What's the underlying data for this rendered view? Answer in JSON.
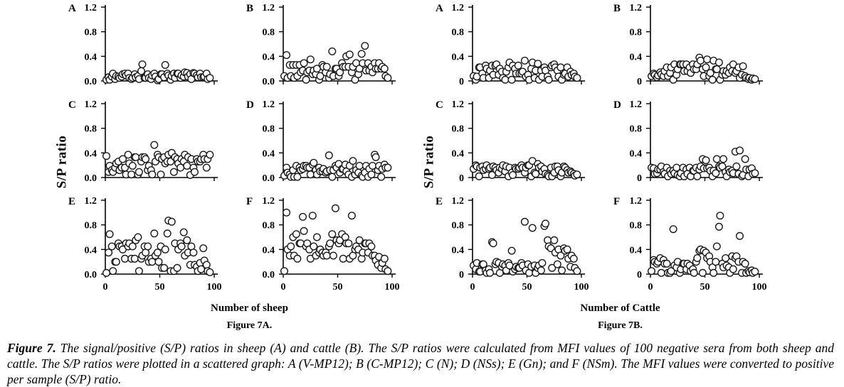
{
  "figure": {
    "caption_lead": "Figure 7.",
    "caption_text": " The signal/positive (S/P) ratios in sheep (A) and cattle (B). The S/P ratios were calculated from MFI values of 100 negative sera from both sheep and cattle. The S/P ratios were plotted in a scattered graph: A (V-MP12); B (C-MP12); C (N); D (NSs); E (Gn); and F (NSm). The MFI values were converted to positive per sample (S/P) ratio."
  },
  "colors": {
    "axis": "#000000",
    "marker_stroke": "#1a1a1a",
    "marker_fill": "#ffffff",
    "text": "#000000",
    "background": "#ffffff"
  },
  "chart_data": [
    {
      "id": "figure-7a",
      "type": "scatter",
      "subcaption": "Figure  7A.",
      "x_axis_label": "Number of sheep",
      "y_axis_label": "S/P ratio",
      "marker": "open-circle",
      "xlim": [
        0,
        100
      ],
      "ylim": [
        0,
        1.2
      ],
      "x_ticks": [
        "0",
        "50",
        "100"
      ],
      "x_tick_values": [
        0,
        50,
        100
      ],
      "y_ticks": [
        "1.2",
        "0.8",
        "0.4",
        "0.0"
      ],
      "y_tick_values": [
        1.2,
        0.8,
        0.4,
        0
      ],
      "x_grid": [
        1,
        3,
        4,
        6,
        7,
        9,
        10,
        12,
        13,
        15,
        16,
        18,
        19,
        21,
        22,
        24,
        25,
        27,
        28,
        30,
        31,
        33,
        34,
        36,
        37,
        39,
        40,
        42,
        43,
        45,
        46,
        48,
        49,
        51,
        52,
        54,
        55,
        57,
        58,
        60,
        61,
        63,
        64,
        66,
        67,
        69,
        70,
        72,
        73,
        75,
        76,
        78,
        79,
        81,
        82,
        84,
        85,
        87,
        88,
        90,
        91,
        93,
        94,
        96
      ],
      "panels": [
        {
          "letter": "A",
          "series": "V-MP12",
          "y": [
            0.02,
            0.06,
            0.02,
            0.07,
            0.12,
            0.03,
            0.08,
            0.07,
            0.05,
            0.07,
            0.11,
            0.12,
            0.09,
            0.12,
            0.05,
            0.03,
            0.05,
            0.11,
            0.06,
            0.08,
            0.03,
            0.16,
            0.27,
            0.05,
            0.05,
            0.11,
            0.05,
            0.03,
            0.09,
            0.12,
            0.07,
            0.01,
            0.03,
            0.11,
            0.11,
            0.06,
            0.26,
            0.12,
            0.09,
            0.02,
            0.08,
            0.12,
            0.05,
            0.12,
            0.12,
            0.05,
            0.09,
            0.07,
            0.14,
            0.13,
            0.07,
            0.11,
            0.03,
            0.13,
            0.12,
            0.09,
            0.06,
            0.12,
            0.06,
            0.06,
            0.07,
            0.12,
            0.03,
            0.05
          ]
        },
        {
          "letter": "B",
          "series": "C-MP12",
          "y": [
            0.08,
            0.42,
            0.05,
            0.26,
            0.08,
            0.26,
            0.05,
            0.26,
            0.08,
            0.26,
            0.14,
            0.17,
            0.29,
            0.02,
            0.14,
            0.17,
            0.35,
            0.11,
            0.17,
            0.11,
            0.2,
            0.02,
            0.08,
            0.26,
            0.23,
            0.14,
            0.23,
            0.05,
            0.11,
            0.48,
            0.08,
            0.2,
            0.2,
            0.08,
            0.14,
            0.29,
            0.23,
            0.23,
            0.4,
            0.23,
            0.43,
            0.14,
            0.23,
            0.02,
            0.29,
            0.11,
            0.2,
            0.44,
            0.29,
            0.57,
            0.17,
            0.29,
            0.17,
            0.23,
            0.14,
            0.29,
            0.2,
            0.2,
            0.29,
            0.2,
            0.23,
            0.2,
            0.08,
            0.05
          ]
        },
        {
          "letter": "C",
          "series": "N",
          "y": [
            0.35,
            0.09,
            0.19,
            0.12,
            0.09,
            0.16,
            0.23,
            0.26,
            0.12,
            0.16,
            0.3,
            0.16,
            0.05,
            0.37,
            0.23,
            0.05,
            0.19,
            0.33,
            0.33,
            0.05,
            0.09,
            0.26,
            0.33,
            0.33,
            0.3,
            0.12,
            0.19,
            0.12,
            0.05,
            0.53,
            0.26,
            0.37,
            0.33,
            0.05,
            0.3,
            0.33,
            0.23,
            0.26,
            0.37,
            0.26,
            0.4,
            0.09,
            0.33,
            0.3,
            0.23,
            0.16,
            0.3,
            0.26,
            0.37,
            0.19,
            0.33,
            0.04,
            0.3,
            0.16,
            0.09,
            0.3,
            0.26,
            0.26,
            0.3,
            0.37,
            0.3,
            0.16,
            0.3,
            0.37
          ]
        },
        {
          "letter": "D",
          "series": "NSs",
          "y": [
            0.03,
            0.16,
            0.08,
            0.05,
            0.01,
            0.12,
            0.01,
            0.19,
            0.01,
            0.16,
            0.12,
            0.14,
            0.19,
            0.19,
            0.16,
            0.16,
            0.05,
            0.21,
            0.24,
            0.12,
            0.05,
            0.16,
            0.1,
            0.1,
            0.14,
            0.08,
            0.1,
            0.36,
            0.12,
            0.01,
            0.12,
            0.19,
            0.16,
            0.22,
            0.08,
            0.14,
            0.14,
            0.21,
            0.1,
            0.05,
            0.19,
            0.01,
            0.27,
            0.05,
            0.12,
            0.08,
            0.19,
            0.03,
            0.01,
            0.08,
            0.19,
            0.01,
            0.14,
            0.05,
            0.19,
            0.37,
            0.33,
            0.12,
            0.19,
            0.01,
            0.14,
            0.21,
            0.16,
            0.16
          ]
        },
        {
          "letter": "E",
          "series": "Gn",
          "y": [
            0.02,
            0.35,
            0.65,
            0.45,
            0.05,
            0.2,
            0.2,
            0.5,
            0.45,
            0.45,
            0.4,
            0.25,
            0.5,
            0.45,
            0.5,
            0.25,
            0.45,
            0.25,
            0.55,
            0.6,
            0.05,
            0.25,
            0.3,
            0.45,
            0.35,
            0.45,
            0.2,
            0.25,
            0.2,
            0.66,
            0.3,
            0.35,
            0.2,
            0.45,
            0.1,
            0.1,
            0.4,
            0.66,
            0.87,
            0.05,
            0.85,
            0.05,
            0.5,
            0.1,
            0.4,
            0.5,
            0.45,
            0.68,
            0.3,
            0.55,
            0.35,
            0.15,
            0.45,
            0.35,
            0.15,
            0.12,
            0.05,
            0.18,
            0.08,
            0.42,
            0.22,
            0.15,
            0.05,
            0.03
          ]
        },
        {
          "letter": "F",
          "series": "NSm",
          "y": [
            0.05,
            1.0,
            0.4,
            0.3,
            0.45,
            0.6,
            0.3,
            0.65,
            0.25,
            0.5,
            0.5,
            0.93,
            0.7,
            0.45,
            0.5,
            0.4,
            0.25,
            0.95,
            0.45,
            0.3,
            0.6,
            0.35,
            0.4,
            0.35,
            0.3,
            0.35,
            0.3,
            0.45,
            0.5,
            0.65,
            0.3,
            1.07,
            0.55,
            0.5,
            0.55,
            0.65,
            0.25,
            0.6,
            0.5,
            0.5,
            0.25,
            0.95,
            0.3,
            0.4,
            0.45,
            0.4,
            0.55,
            0.25,
            0.35,
            0.5,
            0.5,
            0.35,
            0.5,
            0.45,
            0.3,
            0.3,
            0.22,
            0.15,
            0.28,
            0.1,
            0.18,
            0.25,
            0.08,
            0.05
          ]
        }
      ]
    },
    {
      "id": "figure-7b",
      "type": "scatter",
      "subcaption": "Figure  7B.",
      "x_axis_label": "Number of Cattle",
      "y_axis_label": "S/P ratio",
      "marker": "open-circle",
      "xlim": [
        0,
        100
      ],
      "ylim": [
        0,
        1.2
      ],
      "x_ticks": [
        "0",
        "50",
        "100"
      ],
      "x_tick_values": [
        0,
        50,
        100
      ],
      "y_ticks": [
        "1.2",
        "0.8",
        "0.4",
        "0"
      ],
      "y_tick_values": [
        1.2,
        0.8,
        0.4,
        0
      ],
      "x_grid": [
        1,
        3,
        4,
        6,
        7,
        9,
        10,
        12,
        13,
        15,
        16,
        18,
        19,
        21,
        22,
        24,
        25,
        27,
        28,
        30,
        31,
        33,
        34,
        36,
        37,
        39,
        40,
        42,
        43,
        45,
        46,
        48,
        49,
        51,
        52,
        54,
        55,
        57,
        58,
        60,
        61,
        63,
        64,
        66,
        67,
        69,
        70,
        72,
        73,
        75,
        76,
        78,
        79,
        81,
        82,
        84,
        85,
        87,
        88,
        90,
        91,
        93,
        94,
        96
      ],
      "panels": [
        {
          "letter": "A",
          "series": "V-MP12",
          "y": [
            0.08,
            0.02,
            0.07,
            0.22,
            0.22,
            0.12,
            0.05,
            0.25,
            0.2,
            0.05,
            0.17,
            0.25,
            0.1,
            0.25,
            0.27,
            0.1,
            0.2,
            0.15,
            0.05,
            0.02,
            0.15,
            0.22,
            0.3,
            0.02,
            0.25,
            0.2,
            0.12,
            0.25,
            0.12,
            0.12,
            0.15,
            0.33,
            0.07,
            0.1,
            0.02,
            0.2,
            0.3,
            0.05,
            0.17,
            0.28,
            0.02,
            0.17,
            0.07,
            0.22,
            0.17,
            0.07,
            0.02,
            0.22,
            0.25,
            0.27,
            0.22,
            0.17,
            0.07,
            0.22,
            0.02,
            0.1,
            0.12,
            0.22,
            0.07,
            0.15,
            0.1,
            0.12,
            0.07,
            0.05
          ]
        },
        {
          "letter": "B",
          "series": "C-MP12",
          "y": [
            0.08,
            0.12,
            0.1,
            0.06,
            0.09,
            0.14,
            0.11,
            0.08,
            0.16,
            0.22,
            0.08,
            0.13,
            0.22,
            0.02,
            0.27,
            0.1,
            0.19,
            0.27,
            0.27,
            0.27,
            0.16,
            0.27,
            0.16,
            0.22,
            0.13,
            0.27,
            0.19,
            0.19,
            0.27,
            0.38,
            0.33,
            0.19,
            0.08,
            0.22,
            0.35,
            0.08,
            0.13,
            0.02,
            0.33,
            0.19,
            0.19,
            0.3,
            0.02,
            0.1,
            0.16,
            0.1,
            0.16,
            0.13,
            0.22,
            0.16,
            0.27,
            0.13,
            0.16,
            0.22,
            0.05,
            0.1,
            0.24,
            0.08,
            0.05,
            0.03,
            0.05,
            0.02,
            0.04,
            0.03
          ]
        },
        {
          "letter": "C",
          "series": "N",
          "y": [
            0.14,
            0.2,
            0.18,
            0.02,
            0.16,
            0.18,
            0.12,
            0.14,
            0.2,
            0.14,
            0.16,
            0.04,
            0.18,
            0.16,
            0.12,
            0.08,
            0.16,
            0.14,
            0.2,
            0.1,
            0.18,
            0.02,
            0.16,
            0.08,
            0.04,
            0.16,
            0.14,
            0.14,
            0.16,
            0.2,
            0.16,
            0.08,
            0.16,
            0.2,
            0.2,
            0.02,
            0.27,
            0.08,
            0.06,
            0.22,
            0.16,
            0.18,
            0.1,
            0.14,
            0.06,
            0.04,
            0.02,
            0.16,
            0.02,
            0.08,
            0.18,
            0.18,
            0.12,
            0.02,
            0.08,
            0.18,
            0.16,
            0.12,
            0.08,
            0.1,
            0.08,
            0.06,
            0.03,
            0.05
          ]
        },
        {
          "letter": "D",
          "series": "NSs",
          "y": [
            0.16,
            0.15,
            0.06,
            0.07,
            0.13,
            0.13,
            0.18,
            0.09,
            0.06,
            0.16,
            0.02,
            0.11,
            0.06,
            0.11,
            0.07,
            0.16,
            0.04,
            0.02,
            0.07,
            0.16,
            0.02,
            0.13,
            0.06,
            0.16,
            0.02,
            0.11,
            0.11,
            0.16,
            0.02,
            0.13,
            0.18,
            0.3,
            0.15,
            0.28,
            0.15,
            0.16,
            0.11,
            0.02,
            0.11,
            0.07,
            0.3,
            0.18,
            0.16,
            0.18,
            0.3,
            0.09,
            0.02,
            0.13,
            0.09,
            0.11,
            0.07,
            0.42,
            0.18,
            0.06,
            0.44,
            0.02,
            0.04,
            0.3,
            0.13,
            0.02,
            0.13,
            0.15,
            0.06,
            0.07
          ]
        },
        {
          "letter": "E",
          "series": "Gn",
          "y": [
            0.14,
            0.08,
            0.18,
            0.04,
            0.04,
            0.16,
            0.16,
            0.06,
            0.02,
            0.08,
            0.02,
            0.52,
            0.5,
            0.16,
            0.2,
            0.18,
            0.02,
            0.12,
            0.16,
            0.14,
            0.06,
            0.18,
            0.14,
            0.38,
            0.04,
            0.08,
            0.12,
            0.1,
            0.1,
            0.18,
            0.14,
            0.85,
            0.06,
            0.16,
            0.02,
            0.12,
            0.75,
            0.14,
            0.02,
            0.1,
            0.14,
            0.06,
            0.18,
            0.78,
            0.82,
            0.55,
            0.45,
            0.42,
            0.1,
            0.55,
            0.35,
            0.16,
            0.4,
            0.3,
            0.06,
            0.42,
            0.38,
            0.4,
            0.25,
            0.12,
            0.3,
            0.25,
            0.1,
            0.05
          ]
        },
        {
          "letter": "F",
          "series": "NSm",
          "y": [
            0.05,
            0.23,
            0.2,
            0.17,
            0.2,
            0.26,
            0.02,
            0.23,
            0.17,
            0.17,
            0.02,
            0.02,
            0.05,
            0.73,
            0.14,
            0.11,
            0.2,
            0.02,
            0.08,
            0.17,
            0.17,
            0.08,
            0.17,
            0.14,
            0.05,
            0.08,
            0.02,
            0.2,
            0.26,
            0.38,
            0.4,
            0.02,
            0.38,
            0.35,
            0.26,
            0.29,
            0.2,
            0.11,
            0.02,
            0.2,
            0.45,
            0.77,
            0.95,
            0.17,
            0.11,
            0.26,
            0.14,
            0.11,
            0.02,
            0.29,
            0.08,
            0.26,
            0.29,
            0.2,
            0.62,
            0.02,
            0.2,
            0.17,
            0.02,
            0.05,
            0.03,
            0.06,
            0.02,
            0.04
          ]
        }
      ]
    }
  ]
}
